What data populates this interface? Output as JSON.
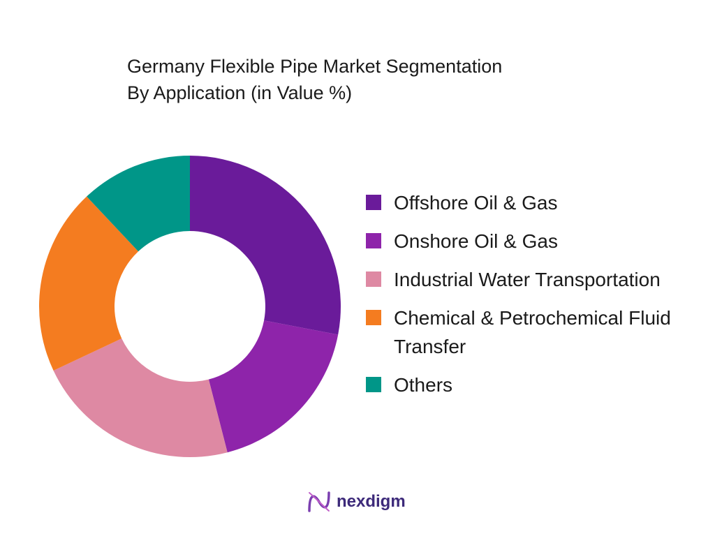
{
  "chart_data": {
    "type": "donut",
    "title": "Germany Flexible Pipe Market Segmentation",
    "subtitle": "By Application (in Value %)",
    "categories": [
      "Offshore Oil & Gas",
      "Onshore Oil & Gas",
      "Industrial Water Transportation",
      "Chemical & Petrochemical Fluid Transfer",
      "Others"
    ],
    "values": [
      28,
      18,
      22,
      20,
      12
    ],
    "colors": [
      "#6a1b9a",
      "#8e24aa",
      "#de89a3",
      "#f47c20",
      "#009688"
    ]
  },
  "brand": "nexdigm"
}
